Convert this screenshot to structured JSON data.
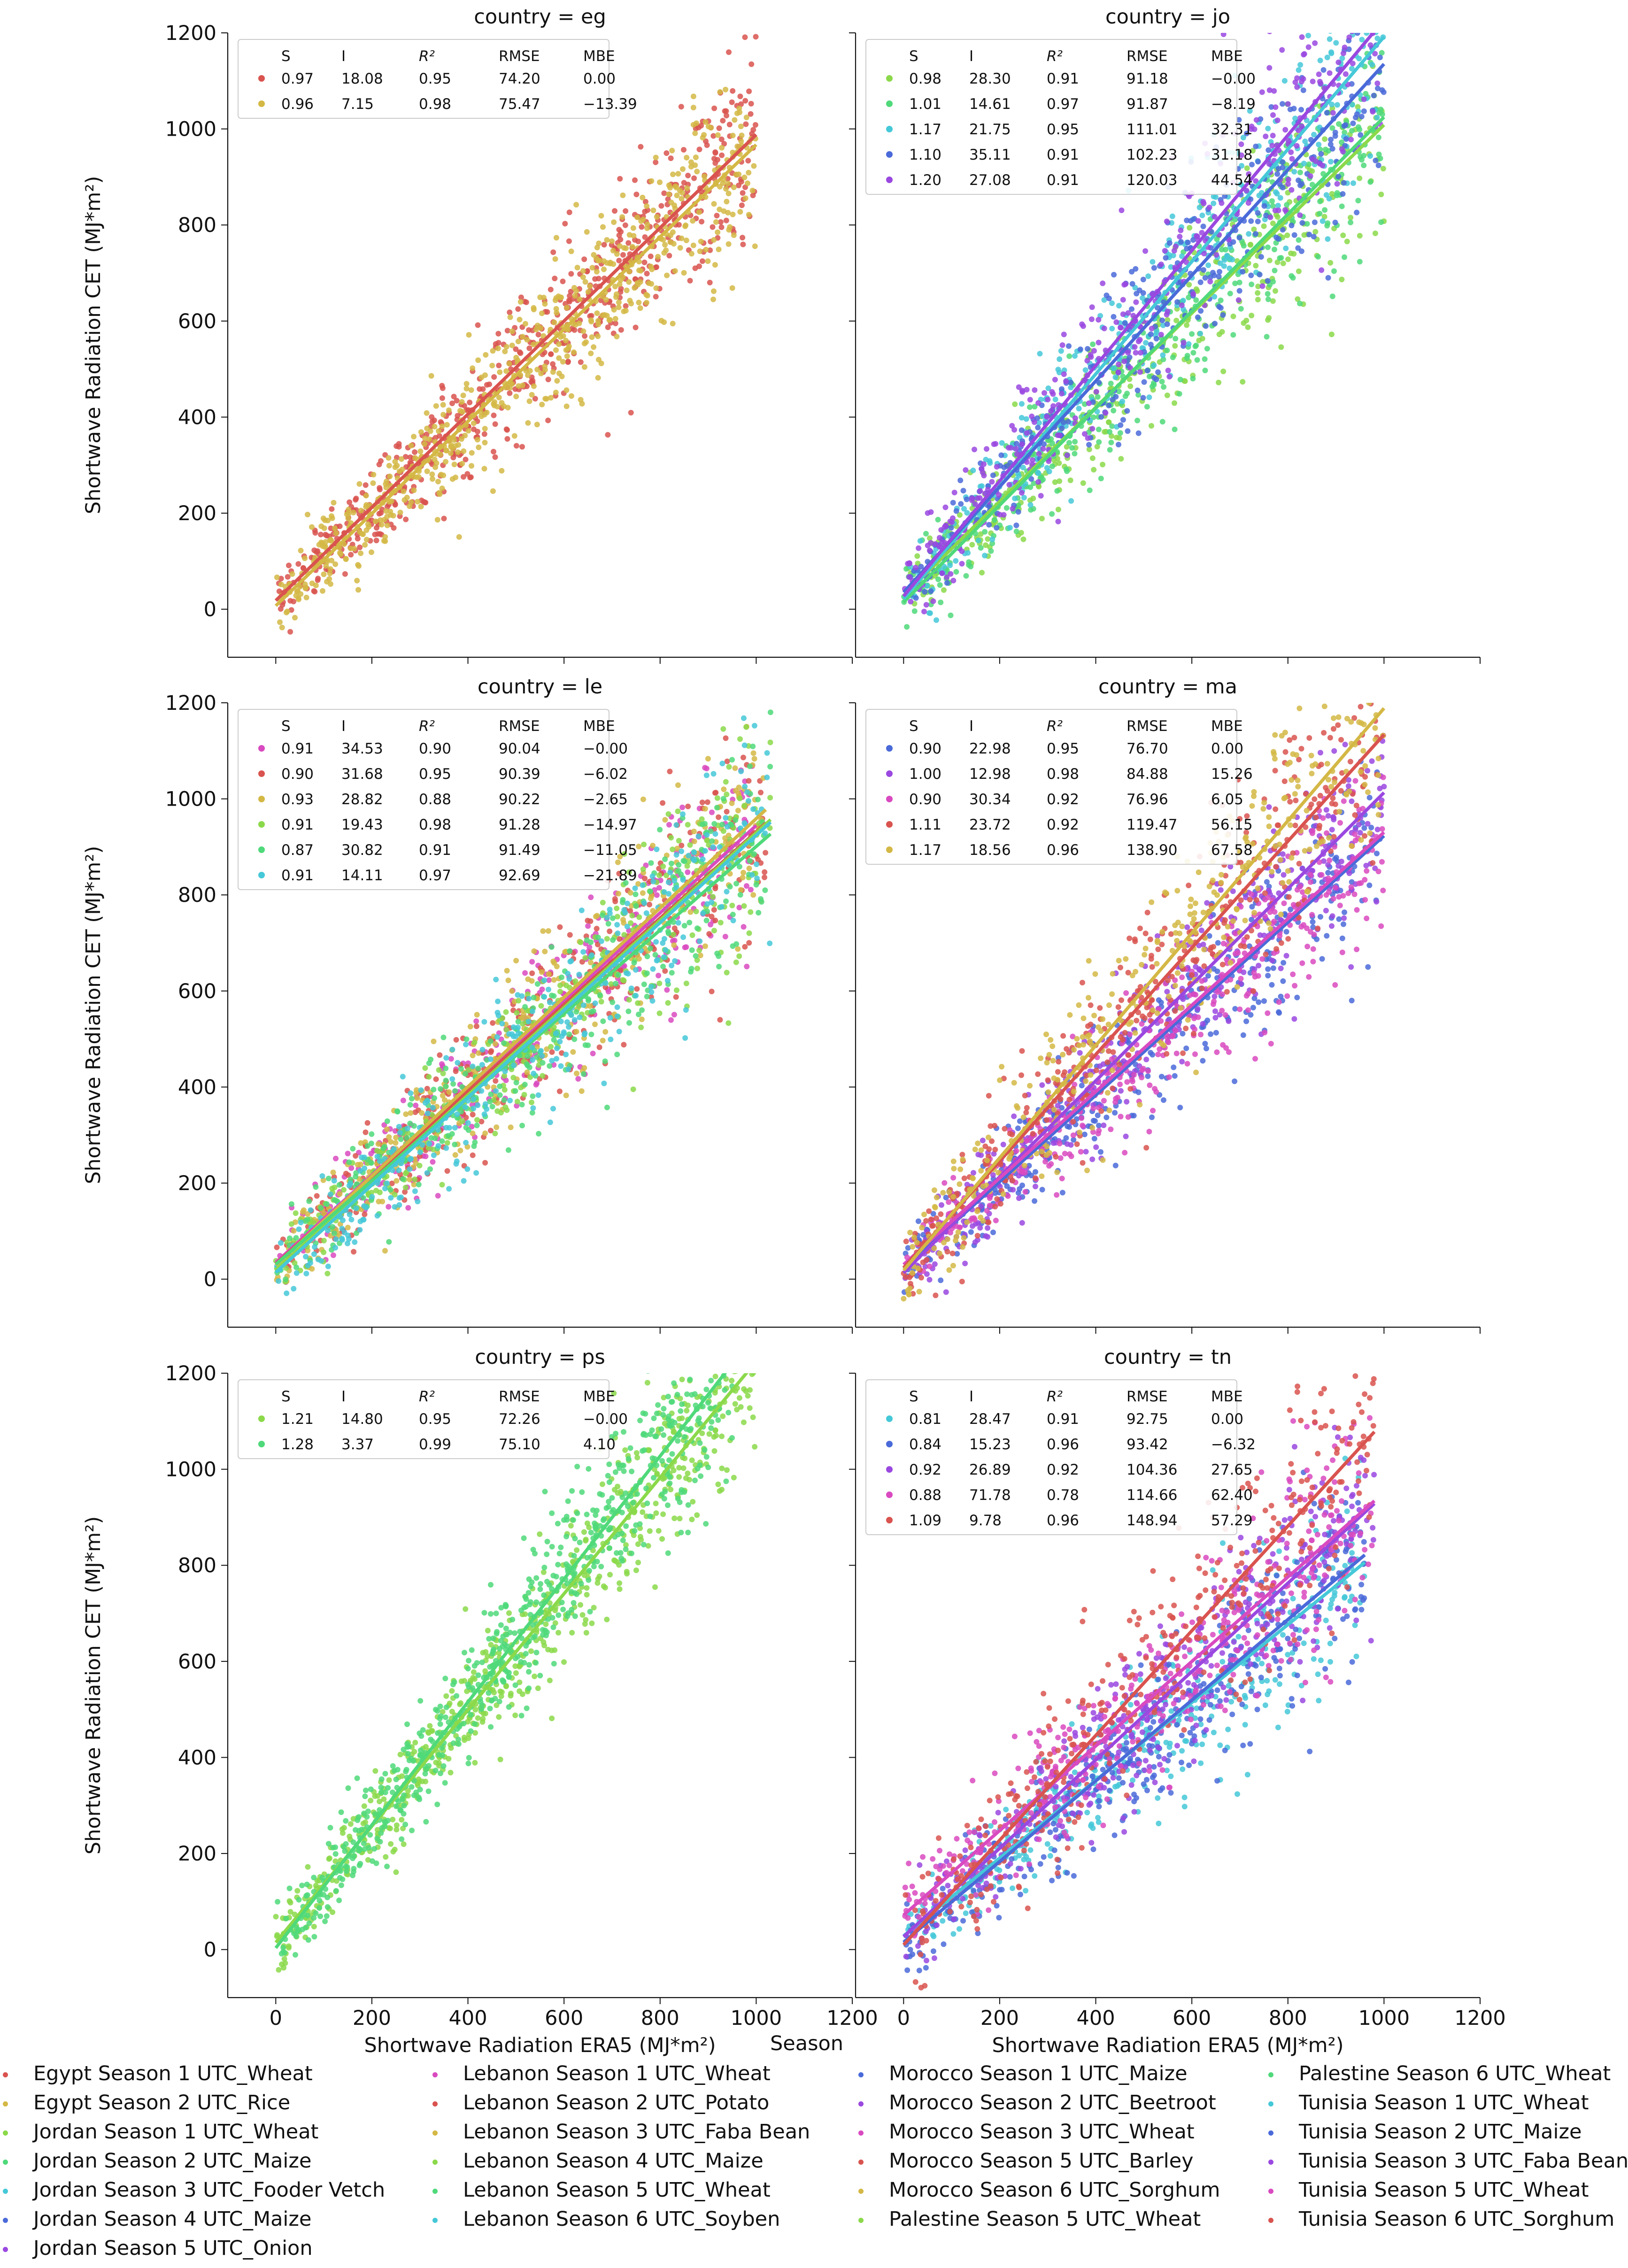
{
  "figure": {
    "xlabel": "Shortwave Radiation ERA5 (MJ*m²)",
    "ylabel": "Shortwave Radiation CET (MJ*m²)",
    "legend_title": "Season"
  },
  "chart_data": [
    {
      "type": "scatter",
      "title": "country = eg",
      "xlim": [
        -100,
        1200
      ],
      "ylim": [
        -100,
        1200
      ],
      "xticks": [
        0,
        200,
        400,
        600,
        800,
        1000,
        1200
      ],
      "yticks": [
        0,
        200,
        400,
        600,
        800,
        1000,
        1200
      ],
      "stats_header": [
        "S",
        "I",
        "R²",
        "RMSE",
        "MBE"
      ],
      "series": [
        {
          "name": "Egypt Season 1 UTC_Wheat",
          "color": "#d9534f",
          "S": "0.97",
          "I": "18.08",
          "R2": "0.95",
          "RMSE": "74.20",
          "MBE": "0.00",
          "xmax": 1000
        },
        {
          "name": "Egypt Season 2 UTC_Rice",
          "color": "#d4b845",
          "S": "0.96",
          "I": "7.15",
          "R2": "0.98",
          "RMSE": "75.47",
          "MBE": "−13.39",
          "xmax": 1000
        }
      ]
    },
    {
      "type": "scatter",
      "title": "country = jo",
      "xlim": [
        -100,
        1200
      ],
      "ylim": [
        -100,
        1200
      ],
      "xticks": [
        0,
        200,
        400,
        600,
        800,
        1000,
        1200
      ],
      "yticks": [
        0,
        200,
        400,
        600,
        800,
        1000,
        1200
      ],
      "stats_header": [
        "S",
        "I",
        "R²",
        "RMSE",
        "MBE"
      ],
      "series": [
        {
          "name": "Jordan Season 1 UTC_Wheat",
          "color": "#8bd94a",
          "S": "0.98",
          "I": "28.30",
          "R2": "0.91",
          "RMSE": "91.18",
          "MBE": "−0.00",
          "xmax": 1000
        },
        {
          "name": "Jordan Season 2 UTC_Maize",
          "color": "#4fd97a",
          "S": "1.01",
          "I": "14.61",
          "R2": "0.97",
          "RMSE": "91.87",
          "MBE": "−8.19",
          "xmax": 1000
        },
        {
          "name": "Jordan Season 3 UTC_Fooder Vetch",
          "color": "#45c8d8",
          "S": "1.17",
          "I": "21.75",
          "R2": "0.95",
          "RMSE": "111.01",
          "MBE": "32.31",
          "xmax": 1000
        },
        {
          "name": "Jordan Season 4 UTC_Maize",
          "color": "#4a6ad9",
          "S": "1.10",
          "I": "35.11",
          "R2": "0.91",
          "RMSE": "102.23",
          "MBE": "31.18",
          "xmax": 1000
        },
        {
          "name": "Jordan Season 5 UTC_Onion",
          "color": "#9a48e0",
          "S": "1.20",
          "I": "27.08",
          "R2": "0.91",
          "RMSE": "120.03",
          "MBE": "44.54",
          "xmax": 1000
        }
      ]
    },
    {
      "type": "scatter",
      "title": "country = le",
      "xlim": [
        -100,
        1200
      ],
      "ylim": [
        -100,
        1200
      ],
      "xticks": [
        0,
        200,
        400,
        600,
        800,
        1000,
        1200
      ],
      "yticks": [
        0,
        200,
        400,
        600,
        800,
        1000,
        1200
      ],
      "stats_header": [
        "S",
        "I",
        "R²",
        "RMSE",
        "MBE"
      ],
      "series": [
        {
          "name": "Lebanon Season 1 UTC_Wheat",
          "color": "#d94ac0",
          "S": "0.91",
          "I": "34.53",
          "R2": "0.90",
          "RMSE": "90.04",
          "MBE": "−0.00",
          "xmax": 1000
        },
        {
          "name": "Lebanon Season 2 UTC_Potato",
          "color": "#d9534f",
          "S": "0.90",
          "I": "31.68",
          "R2": "0.95",
          "RMSE": "90.39",
          "MBE": "−6.02",
          "xmax": 1020
        },
        {
          "name": "Lebanon Season 3 UTC_Faba Bean",
          "color": "#d4b845",
          "S": "0.93",
          "I": "28.82",
          "R2": "0.88",
          "RMSE": "90.22",
          "MBE": "−2.65",
          "xmax": 1020
        },
        {
          "name": "Lebanon Season 4 UTC_Maize",
          "color": "#8bd94a",
          "S": "0.91",
          "I": "19.43",
          "R2": "0.98",
          "RMSE": "91.28",
          "MBE": "−14.97",
          "xmax": 1030
        },
        {
          "name": "Lebanon Season 5 UTC_Wheat",
          "color": "#4fd97a",
          "S": "0.87",
          "I": "30.82",
          "R2": "0.91",
          "RMSE": "91.49",
          "MBE": "−11.05",
          "xmax": 1030
        },
        {
          "name": "Lebanon Season 6 UTC_Soyben",
          "color": "#45c8d8",
          "S": "0.91",
          "I": "14.11",
          "R2": "0.97",
          "RMSE": "92.69",
          "MBE": "−21.89",
          "xmax": 1030
        }
      ]
    },
    {
      "type": "scatter",
      "title": "country = ma",
      "xlim": [
        -100,
        1200
      ],
      "ylim": [
        -100,
        1200
      ],
      "xticks": [
        0,
        200,
        400,
        600,
        800,
        1000,
        1200
      ],
      "yticks": [
        0,
        200,
        400,
        600,
        800,
        1000,
        1200
      ],
      "stats_header": [
        "S",
        "I",
        "R²",
        "RMSE",
        "MBE"
      ],
      "series": [
        {
          "name": "Morocco Season 1 UTC_Maize",
          "color": "#4a6ad9",
          "S": "0.90",
          "I": "22.98",
          "R2": "0.95",
          "RMSE": "76.70",
          "MBE": "0.00",
          "xmax": 1000
        },
        {
          "name": "Morocco Season 2 UTC_Beetroot",
          "color": "#9a48e0",
          "S": "1.00",
          "I": "12.98",
          "R2": "0.98",
          "RMSE": "84.88",
          "MBE": "15.26",
          "xmax": 1000
        },
        {
          "name": "Morocco Season 3 UTC_Wheat",
          "color": "#d94ac0",
          "S": "0.90",
          "I": "30.34",
          "R2": "0.92",
          "RMSE": "76.96",
          "MBE": "6.05",
          "xmax": 1000
        },
        {
          "name": "Morocco Season 5 UTC_Barley",
          "color": "#d9534f",
          "S": "1.11",
          "I": "23.72",
          "R2": "0.92",
          "RMSE": "119.47",
          "MBE": "56.15",
          "xmax": 1000
        },
        {
          "name": "Morocco Season 6 UTC_Sorghum",
          "color": "#d4b845",
          "S": "1.17",
          "I": "18.56",
          "R2": "0.96",
          "RMSE": "138.90",
          "MBE": "67.58",
          "xmax": 1000
        }
      ]
    },
    {
      "type": "scatter",
      "title": "country = ps",
      "xlim": [
        -100,
        1200
      ],
      "ylim": [
        -100,
        1200
      ],
      "xticks": [
        0,
        200,
        400,
        600,
        800,
        1000,
        1200
      ],
      "yticks": [
        0,
        200,
        400,
        600,
        800,
        1000,
        1200
      ],
      "stats_header": [
        "S",
        "I",
        "R²",
        "RMSE",
        "MBE"
      ],
      "series": [
        {
          "name": "Palestine Season 5 UTC_Wheat",
          "color": "#8bd94a",
          "S": "1.21",
          "I": "14.80",
          "R2": "0.95",
          "RMSE": "72.26",
          "MBE": "−0.00",
          "xmax": 1000
        },
        {
          "name": "Palestine Season 6 UTC_Wheat",
          "color": "#4fd97a",
          "S": "1.28",
          "I": "3.37",
          "R2": "0.99",
          "RMSE": "75.10",
          "MBE": "4.10",
          "xmax": 950
        }
      ]
    },
    {
      "type": "scatter",
      "title": "country = tn",
      "xlim": [
        -100,
        1200
      ],
      "ylim": [
        -100,
        1200
      ],
      "xticks": [
        0,
        200,
        400,
        600,
        800,
        1000,
        1200
      ],
      "yticks": [
        0,
        200,
        400,
        600,
        800,
        1000,
        1200
      ],
      "stats_header": [
        "S",
        "I",
        "R²",
        "RMSE",
        "MBE"
      ],
      "series": [
        {
          "name": "Tunisia Season 1 UTC_Wheat",
          "color": "#45c8d8",
          "S": "0.81",
          "I": "28.47",
          "R2": "0.91",
          "RMSE": "92.75",
          "MBE": "0.00",
          "xmax": 960
        },
        {
          "name": "Tunisia Season 2 UTC_Maize",
          "color": "#4a6ad9",
          "S": "0.84",
          "I": "15.23",
          "R2": "0.96",
          "RMSE": "93.42",
          "MBE": "−6.32",
          "xmax": 960
        },
        {
          "name": "Tunisia Season 3 UTC_Faba Bean",
          "color": "#9a48e0",
          "S": "0.92",
          "I": "26.89",
          "R2": "0.92",
          "RMSE": "104.36",
          "MBE": "27.65",
          "xmax": 980
        },
        {
          "name": "Tunisia Season 5 UTC_Wheat",
          "color": "#d94ac0",
          "S": "0.88",
          "I": "71.78",
          "R2": "0.78",
          "RMSE": "114.66",
          "MBE": "62.40",
          "xmax": 980
        },
        {
          "name": "Tunisia Season 6 UTC_Sorghum",
          "color": "#d9534f",
          "S": "1.09",
          "I": "9.78",
          "R2": "0.96",
          "RMSE": "148.94",
          "MBE": "57.29",
          "xmax": 980
        }
      ]
    }
  ],
  "legend": {
    "title": "Season",
    "columns": [
      [
        {
          "label": "Egypt Season 1 UTC_Wheat",
          "color": "#d9534f"
        },
        {
          "label": "Egypt Season 2 UTC_Rice",
          "color": "#d4b845"
        },
        {
          "label": "Jordan Season 1 UTC_Wheat",
          "color": "#8bd94a"
        },
        {
          "label": "Jordan Season 2 UTC_Maize",
          "color": "#4fd97a"
        },
        {
          "label": "Jordan Season 3 UTC_Fooder Vetch",
          "color": "#45c8d8"
        },
        {
          "label": "Jordan Season 4 UTC_Maize",
          "color": "#4a6ad9"
        },
        {
          "label": "Jordan Season 5 UTC_Onion",
          "color": "#9a48e0"
        }
      ],
      [
        {
          "label": "Lebanon Season 1 UTC_Wheat",
          "color": "#d94ac0"
        },
        {
          "label": "Lebanon Season 2 UTC_Potato",
          "color": "#d9534f"
        },
        {
          "label": "Lebanon Season 3 UTC_Faba Bean",
          "color": "#d4b845"
        },
        {
          "label": "Lebanon Season 4 UTC_Maize",
          "color": "#8bd94a"
        },
        {
          "label": "Lebanon Season 5 UTC_Wheat",
          "color": "#4fd97a"
        },
        {
          "label": "Lebanon Season 6 UTC_Soyben",
          "color": "#45c8d8"
        }
      ],
      [
        {
          "label": "Morocco Season 1 UTC_Maize",
          "color": "#4a6ad9"
        },
        {
          "label": "Morocco Season 2 UTC_Beetroot",
          "color": "#9a48e0"
        },
        {
          "label": "Morocco Season 3 UTC_Wheat",
          "color": "#d94ac0"
        },
        {
          "label": "Morocco Season 5 UTC_Barley",
          "color": "#d9534f"
        },
        {
          "label": "Morocco Season 6 UTC_Sorghum",
          "color": "#d4b845"
        },
        {
          "label": "Palestine Season 5 UTC_Wheat",
          "color": "#8bd94a"
        }
      ],
      [
        {
          "label": "Palestine Season 6 UTC_Wheat",
          "color": "#4fd97a"
        },
        {
          "label": "Tunisia Season 1 UTC_Wheat",
          "color": "#45c8d8"
        },
        {
          "label": "Tunisia Season 2 UTC_Maize",
          "color": "#4a6ad9"
        },
        {
          "label": "Tunisia Season 3 UTC_Faba Bean",
          "color": "#9a48e0"
        },
        {
          "label": "Tunisia Season 5 UTC_Wheat",
          "color": "#d94ac0"
        },
        {
          "label": "Tunisia Season 6 UTC_Sorghum",
          "color": "#d9534f"
        }
      ]
    ]
  }
}
